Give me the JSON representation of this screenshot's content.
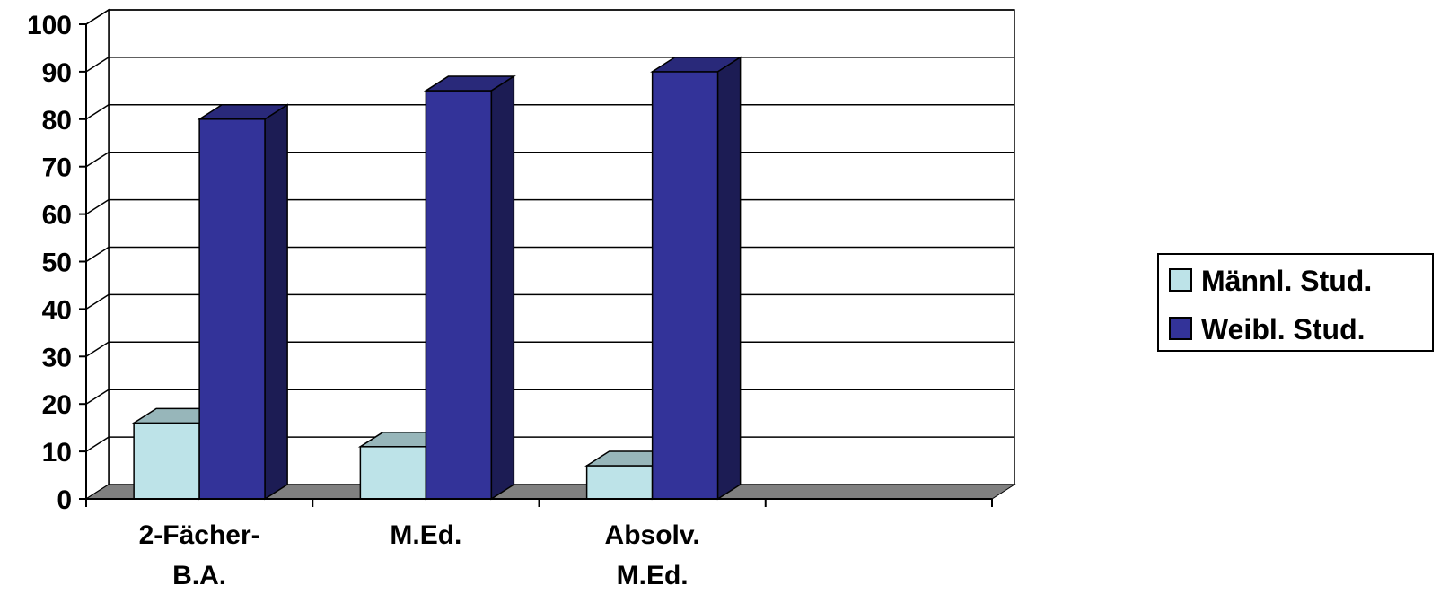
{
  "chart_data": {
    "type": "bar",
    "categories": [
      [
        "2-Fächer-",
        "B.A."
      ],
      [
        "M.Ed."
      ],
      [
        "Absolv.",
        "M.Ed."
      ],
      [
        ""
      ]
    ],
    "series": [
      {
        "name": "Männl. Stud.",
        "values": [
          16,
          11,
          7,
          null
        ],
        "color": "#bde3e8"
      },
      {
        "name": "Weibl. Stud.",
        "values": [
          80,
          86,
          90,
          null
        ],
        "color": "#333399"
      }
    ],
    "y_ticks": [
      "0",
      "10",
      "20",
      "30",
      "40",
      "50",
      "60",
      "70",
      "80",
      "90",
      "100"
    ],
    "ylim": [
      0,
      100
    ],
    "grid": true,
    "legend": "right",
    "style": "3d-column",
    "floor_color": "#808080"
  }
}
